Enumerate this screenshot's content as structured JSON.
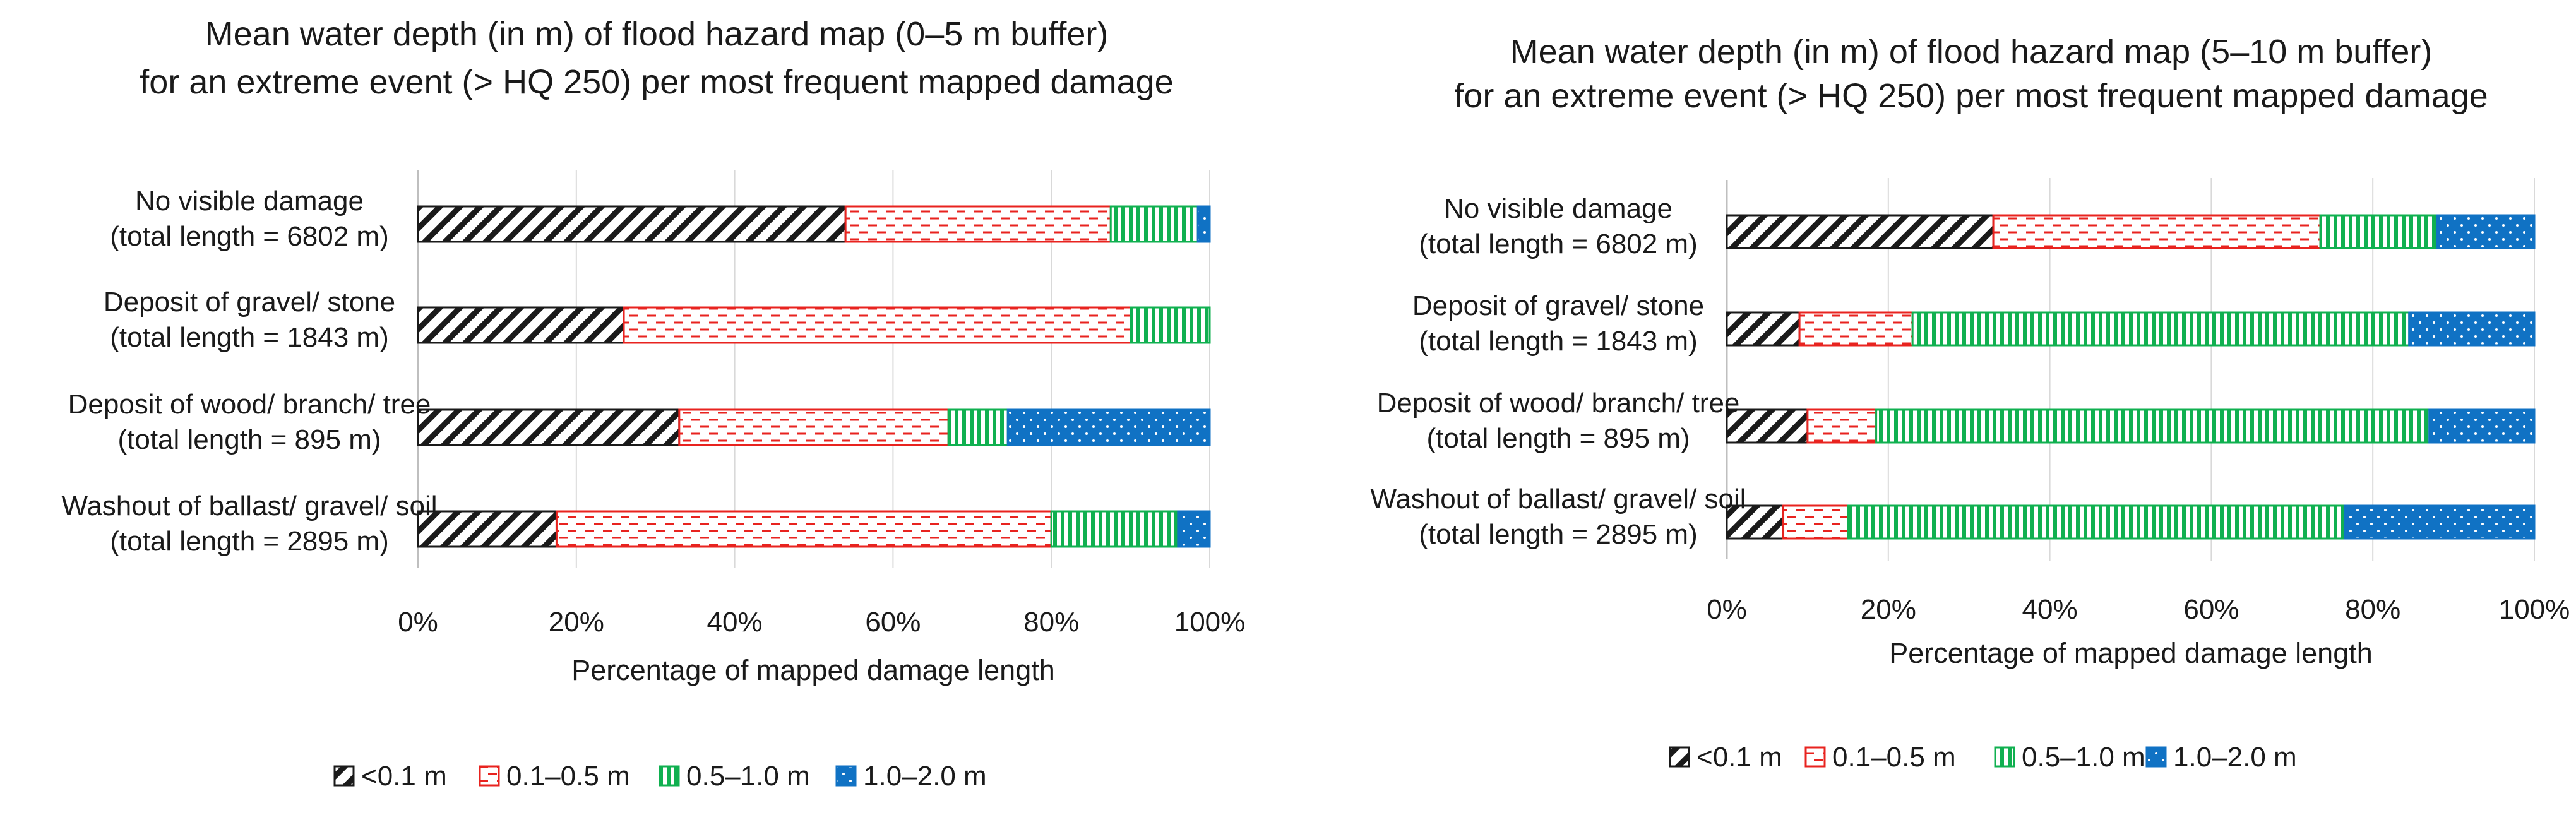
{
  "chart_data": [
    {
      "type": "bar",
      "orientation": "horizontal",
      "stacked": "percent",
      "title_lines": [
        "Mean water depth (in m) of flood hazard map (0–5 m buffer)",
        "for an extreme event (> HQ 250) per most frequent mapped damage"
      ],
      "categories": [
        [
          "No visible damage",
          "(total length = 6802 m)"
        ],
        [
          "Deposit of gravel/ stone",
          "(total length = 1843 m)"
        ],
        [
          "Deposit of wood/ branch/ tree",
          "(total length = 895 m)"
        ],
        [
          "Washout of ballast/ gravel/ soil",
          "(total length = 2895 m)"
        ]
      ],
      "series": [
        {
          "name": "<0.1 m",
          "values": [
            54,
            26,
            33,
            17.5
          ]
        },
        {
          "name": "0.1–0.5 m",
          "values": [
            33.5,
            64,
            34,
            62.5
          ]
        },
        {
          "name": "0.5–1.0 m",
          "values": [
            11,
            10,
            7.5,
            16
          ]
        },
        {
          "name": "1.0–2.0 m",
          "values": [
            1.5,
            0,
            25.5,
            4
          ]
        }
      ],
      "xlabel": "Percentage of mapped damage length",
      "xlim": [
        0,
        100
      ],
      "xticks": [
        "0%",
        "20%",
        "40%",
        "60%",
        "80%",
        "100%"
      ],
      "grid": true,
      "legend_position": "bottom"
    },
    {
      "type": "bar",
      "orientation": "horizontal",
      "stacked": "percent",
      "title_lines": [
        "Mean water depth (in m) of flood hazard map (5–10 m buffer)",
        "for an extreme event (> HQ 250) per most frequent mapped damage"
      ],
      "categories": [
        [
          "No visible damage",
          "(total length = 6802 m)"
        ],
        [
          "Deposit of gravel/ stone",
          "(total length = 1843 m)"
        ],
        [
          "Deposit of wood/ branch/ tree",
          "(total length = 895 m)"
        ],
        [
          "Washout of ballast/ gravel/ soil",
          "(total length = 2895 m)"
        ]
      ],
      "series": [
        {
          "name": "<0.1 m",
          "values": [
            33,
            9,
            10,
            7
          ]
        },
        {
          "name": "0.1–0.5 m",
          "values": [
            40.5,
            14,
            8.5,
            8
          ]
        },
        {
          "name": "0.5–1.0 m",
          "values": [
            14.5,
            61.5,
            68.5,
            61.5
          ]
        },
        {
          "name": "1.0–2.0 m",
          "values": [
            12,
            15.5,
            13,
            23.5
          ]
        }
      ],
      "xlabel": "Percentage of mapped damage length",
      "xlim": [
        0,
        100
      ],
      "xticks": [
        "0%",
        "20%",
        "40%",
        "60%",
        "80%",
        "100%"
      ],
      "grid": true,
      "legend_position": "bottom"
    }
  ],
  "colors": {
    "<0.1 m": "#1a1a1a",
    "0.1–0.5 m": "#e8231f",
    "0.5–1.0 m": "#10b050",
    "1.0–2.0 m": "#1072c4"
  },
  "patterns": {
    "<0.1 m": "diagonal-hatch",
    "0.1–0.5 m": "dashed-horizontal",
    "0.5–1.0 m": "vertical-stripes",
    "1.0–2.0 m": "dots"
  }
}
